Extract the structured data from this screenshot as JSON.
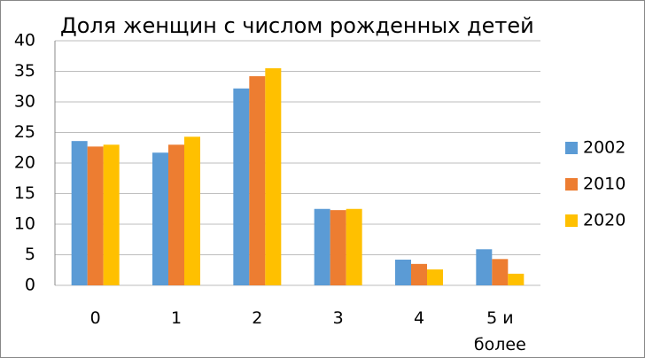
{
  "chart_data": {
    "type": "bar",
    "title": "Доля женщин с числом рожденных детей",
    "categories": [
      "0",
      "1",
      "2",
      "3",
      "4",
      "5 и более"
    ],
    "series": [
      {
        "name": "2002",
        "color": "#5b9bd5",
        "values": [
          23.6,
          21.7,
          32.2,
          12.5,
          4.2,
          5.9
        ]
      },
      {
        "name": "2010",
        "color": "#ed7d31",
        "values": [
          22.7,
          23.0,
          34.2,
          12.3,
          3.5,
          4.3
        ]
      },
      {
        "name": "2020",
        "color": "#ffc000",
        "values": [
          23.0,
          24.3,
          35.5,
          12.5,
          2.6,
          1.9
        ]
      }
    ],
    "ylim": [
      0,
      40
    ],
    "yticks": [
      0,
      5,
      10,
      15,
      20,
      25,
      30,
      35,
      40
    ],
    "grid": true,
    "legend": "right"
  }
}
